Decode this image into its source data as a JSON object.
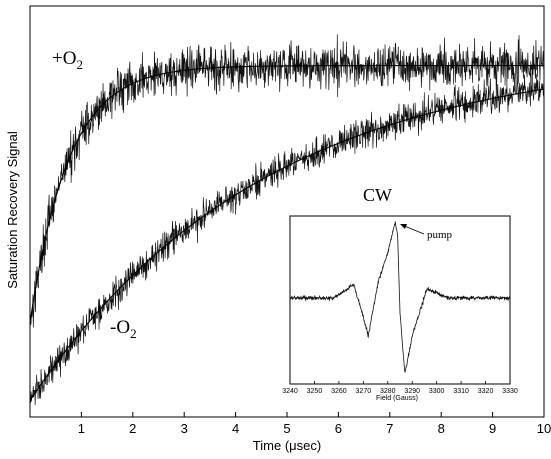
{
  "chart_data": [
    {
      "type": "line",
      "xlabel": "Time (μsec)",
      "ylabel": "Saturation Recovery Signal",
      "xlim": [
        0,
        10
      ],
      "ylim": [
        0,
        1
      ],
      "x_ticks": [
        1,
        2,
        3,
        4,
        5,
        6,
        7,
        8,
        9,
        10
      ],
      "grid": false,
      "annotations": [
        {
          "text": "+O",
          "sub": "2",
          "series": "+O2"
        },
        {
          "text": "-O",
          "sub": "2",
          "series": "-O2"
        }
      ],
      "series": [
        {
          "name": "+O2",
          "baseline": 0.23,
          "amplitude": 0.625,
          "tau": 0.75,
          "noise": 0.07,
          "x": [
            0,
            0.5,
            1,
            1.5,
            2,
            3,
            4,
            5,
            6,
            7,
            8,
            9,
            10
          ],
          "values": [
            0.23,
            0.57,
            0.74,
            0.8,
            0.83,
            0.85,
            0.855,
            0.855,
            0.855,
            0.855,
            0.855,
            0.855,
            0.855
          ]
        },
        {
          "name": "-O2",
          "baseline": 0.04,
          "amplitude": 0.85,
          "tau": 4.5,
          "noise": 0.05,
          "x": [
            0,
            1,
            2,
            3,
            4,
            5,
            6,
            7,
            8,
            9,
            10
          ],
          "values": [
            0.04,
            0.22,
            0.36,
            0.47,
            0.56,
            0.62,
            0.67,
            0.71,
            0.74,
            0.76,
            0.78
          ]
        }
      ]
    },
    {
      "type": "line",
      "title": "CW",
      "xlabel": "Field (Gauss)",
      "xlim": [
        3240,
        3330
      ],
      "x_ticks": [
        3240,
        3250,
        3260,
        3270,
        3280,
        3290,
        3300,
        3310,
        3320,
        3330
      ],
      "annotations": [
        {
          "text": "pump",
          "x": 3284,
          "arrow": true
        }
      ],
      "series": [
        {
          "name": "CW spectrum",
          "x": [
            3240,
            3258,
            3266,
            3270,
            3272,
            3276,
            3280,
            3283,
            3284,
            3285,
            3287,
            3290,
            3296,
            3305,
            3330
          ],
          "values": [
            0.0,
            0.0,
            0.18,
            -0.25,
            -0.5,
            0.2,
            0.6,
            1.0,
            0.85,
            -0.2,
            -1.0,
            -0.5,
            0.12,
            0.0,
            0.0
          ]
        }
      ]
    }
  ]
}
